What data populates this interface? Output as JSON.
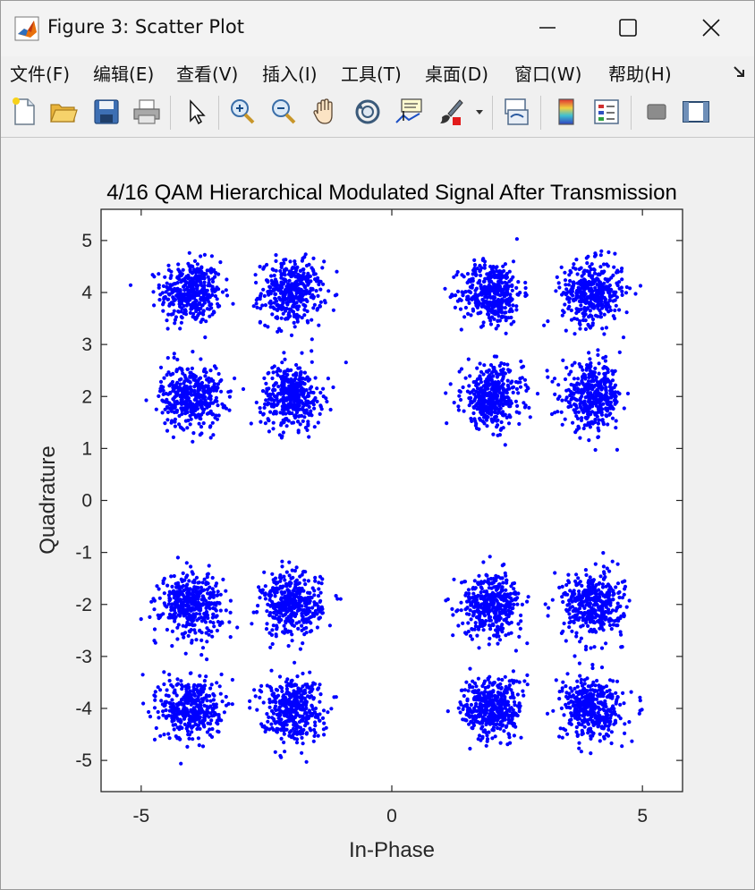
{
  "window": {
    "title": "Figure 3: Scatter Plot"
  },
  "menu": {
    "items": [
      "文件(F)",
      "编辑(E)",
      "查看(V)",
      "插入(I)",
      "工具(T)",
      "桌面(D)",
      "窗口(W)",
      "帮助(H)"
    ]
  },
  "toolbar": {
    "icons": [
      "new-figure-icon",
      "open-file-icon",
      "save-icon",
      "print-icon",
      "pointer-icon",
      "zoom-in-icon",
      "zoom-out-icon",
      "pan-hand-icon",
      "rotate-3d-icon",
      "data-cursor-icon",
      "brush-icon",
      "brush-dropdown-icon",
      "link-plot-icon",
      "colorbar-icon",
      "legend-icon",
      "hide-plot-tools-icon",
      "show-plot-tools-icon"
    ]
  },
  "colors": {
    "marker": "#0000ff",
    "axes_bg": "#ffffff",
    "figure_bg": "#f0f0f0"
  },
  "chart_data": {
    "type": "scatter",
    "title": "4/16 QAM Hierarchical Modulated Signal After Transmission",
    "xlabel": "In-Phase",
    "ylabel": "Quadrature",
    "xlim": [
      -5.8,
      5.8
    ],
    "ylim": [
      -5.6,
      5.6
    ],
    "xticks": [
      -5,
      0,
      5
    ],
    "xtick_labels": [
      "-5",
      "0",
      "5"
    ],
    "yticks": [
      5,
      4,
      3,
      2,
      1,
      0,
      -1,
      -2,
      -3,
      -4,
      -5
    ],
    "ytick_labels": [
      "5",
      "4",
      "3",
      "2",
      "1",
      "0",
      "-1",
      "-2",
      "-3",
      "-4",
      "-5"
    ],
    "grid": false,
    "legend": "none",
    "marker": "filled dot",
    "cluster_centers": [
      [
        -4,
        4
      ],
      [
        -2,
        4
      ],
      [
        2,
        4
      ],
      [
        4,
        4
      ],
      [
        -4,
        2
      ],
      [
        -2,
        2
      ],
      [
        2,
        2
      ],
      [
        4,
        2
      ],
      [
        -4,
        -2
      ],
      [
        -2,
        -2
      ],
      [
        2,
        -2
      ],
      [
        4,
        -2
      ],
      [
        -4,
        -4
      ],
      [
        -2,
        -4
      ],
      [
        2,
        -4
      ],
      [
        4,
        -4
      ]
    ],
    "points_per_cluster": 400,
    "noise_std": 0.3
  }
}
